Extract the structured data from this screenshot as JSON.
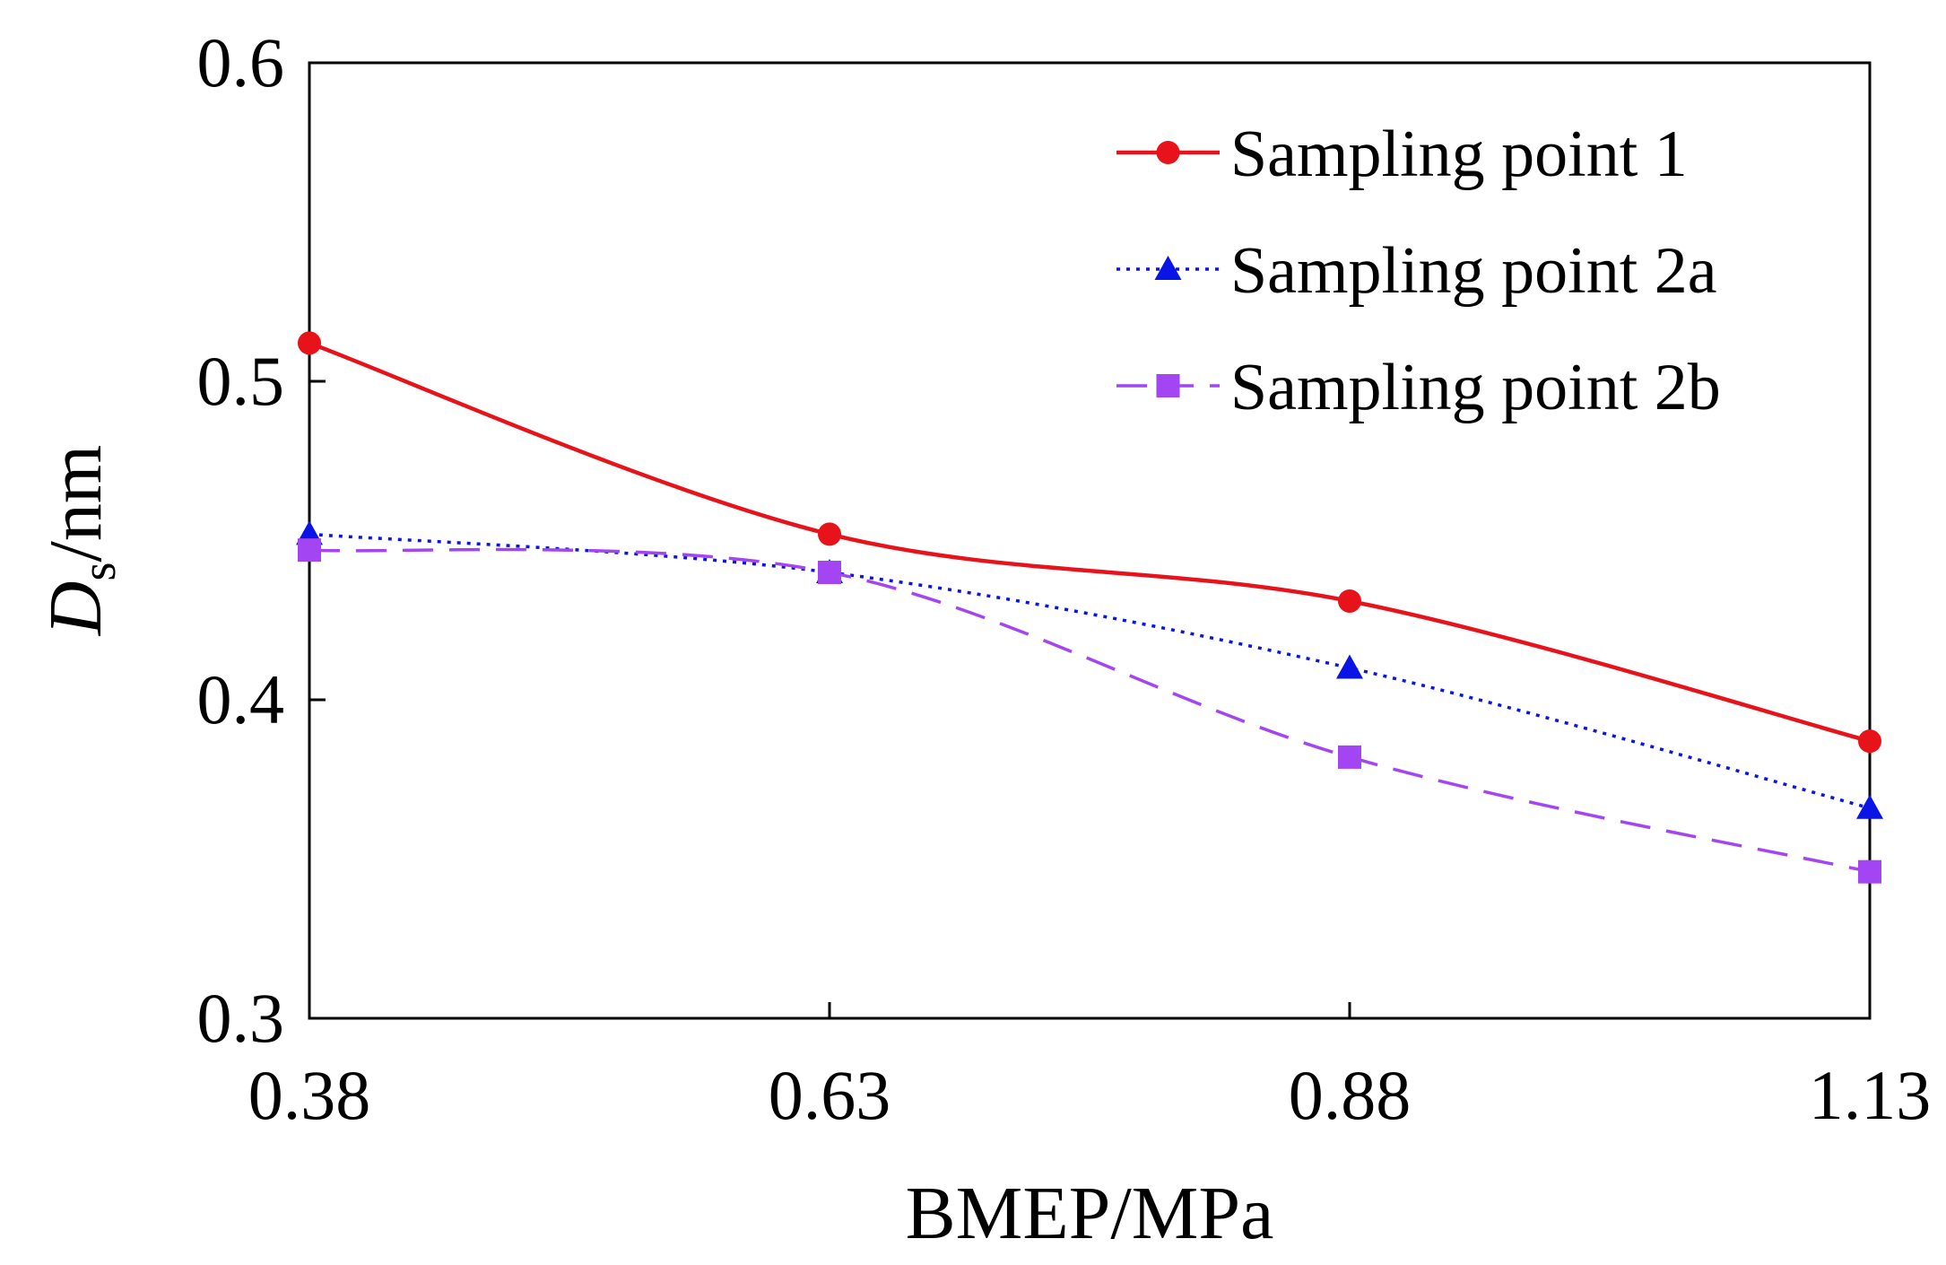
{
  "chart_data": {
    "type": "line",
    "xlabel": "BMEP/MPa",
    "ylabel": {
      "main": "D",
      "sub": "s",
      "suffix": "/nm"
    },
    "categories": [
      "0.38",
      "0.63",
      "0.88",
      "1.13"
    ],
    "x": [
      0.38,
      0.63,
      0.88,
      1.13
    ],
    "xlim": [
      0.38,
      1.13
    ],
    "ylim": [
      0.3,
      0.6
    ],
    "yticks": [
      "0.3",
      "0.4",
      "0.5",
      "0.6"
    ],
    "ytick_values": [
      0.3,
      0.4,
      0.5,
      0.6
    ],
    "grid": false,
    "legend_position": "top-right",
    "series": [
      {
        "name": "Sampling point 1",
        "values": [
          0.512,
          0.452,
          0.431,
          0.387
        ],
        "color": "#e8121a",
        "line": "solid",
        "marker": "circle"
      },
      {
        "name": "Sampling point 2a",
        "values": [
          0.452,
          0.44,
          0.41,
          0.366
        ],
        "color": "#0a14e6",
        "line": "dotted",
        "marker": "triangle"
      },
      {
        "name": "Sampling point 2b",
        "values": [
          0.447,
          0.44,
          0.382,
          0.346
        ],
        "color": "#a345f2",
        "line": "dashed",
        "marker": "square"
      }
    ]
  }
}
